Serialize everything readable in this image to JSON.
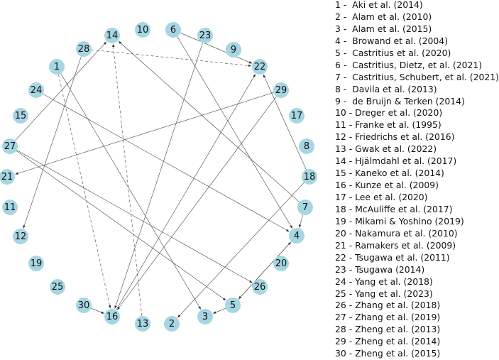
{
  "nodes": [
    {
      "id": "1",
      "label": "1"
    },
    {
      "id": "2",
      "label": "2"
    },
    {
      "id": "3",
      "label": "3"
    },
    {
      "id": "4",
      "label": "4"
    },
    {
      "id": "5",
      "label": "5"
    },
    {
      "id": "6",
      "label": "6"
    },
    {
      "id": "7",
      "label": "7"
    },
    {
      "id": "8",
      "label": "8"
    },
    {
      "id": "9",
      "label": "9"
    },
    {
      "id": "10",
      "label": "10"
    },
    {
      "id": "11",
      "label": "11"
    },
    {
      "id": "12",
      "label": "12"
    },
    {
      "id": "13",
      "label": "13"
    },
    {
      "id": "14",
      "label": "14"
    },
    {
      "id": "15",
      "label": "15"
    },
    {
      "id": "16",
      "label": "16"
    },
    {
      "id": "17",
      "label": "17"
    },
    {
      "id": "18",
      "label": "18"
    },
    {
      "id": "19",
      "label": "19"
    },
    {
      "id": "20",
      "label": "20"
    },
    {
      "id": "21",
      "label": "21"
    },
    {
      "id": "22",
      "label": "22"
    },
    {
      "id": "23",
      "label": "23"
    },
    {
      "id": "24",
      "label": "24"
    },
    {
      "id": "25",
      "label": "25"
    },
    {
      "id": "26",
      "label": "26"
    },
    {
      "id": "27",
      "label": "27"
    },
    {
      "id": "28",
      "label": "28"
    },
    {
      "id": "29",
      "label": "29"
    },
    {
      "id": "30",
      "label": "30"
    }
  ],
  "edges": [
    {
      "from": "28",
      "to": "22",
      "style": "dashed"
    },
    {
      "from": "6",
      "to": "22",
      "style": "solid"
    },
    {
      "from": "6",
      "to": "4",
      "style": "solid"
    },
    {
      "from": "23",
      "to": "16",
      "style": "solid"
    },
    {
      "from": "1",
      "to": "16",
      "style": "dashed"
    },
    {
      "from": "1",
      "to": "3",
      "style": "solid"
    },
    {
      "from": "13",
      "to": "14",
      "style": "dashed"
    },
    {
      "from": "28",
      "to": "12",
      "style": "solid"
    },
    {
      "from": "27",
      "to": "14",
      "style": "solid"
    },
    {
      "from": "27",
      "to": "26",
      "style": "solid"
    },
    {
      "from": "27",
      "to": "5",
      "style": "solid"
    },
    {
      "from": "24",
      "to": "4",
      "style": "solid"
    },
    {
      "from": "7",
      "to": "14",
      "style": "solid"
    },
    {
      "from": "7",
      "to": "4",
      "style": "solid"
    },
    {
      "from": "18",
      "to": "22",
      "style": "solid"
    },
    {
      "from": "18",
      "to": "2",
      "style": "solid"
    },
    {
      "from": "29",
      "to": "21",
      "style": "solid"
    },
    {
      "from": "29",
      "to": "16",
      "style": "solid"
    },
    {
      "from": "30",
      "to": "16",
      "style": "solid"
    },
    {
      "from": "16",
      "to": "22",
      "style": "solid"
    },
    {
      "from": "5",
      "to": "3",
      "style": "solid"
    },
    {
      "from": "5",
      "to": "4",
      "style": "solid"
    },
    {
      "from": "4",
      "to": "5",
      "style": "solid"
    }
  ],
  "legend": [
    "1 -  Aki et al. (2014)",
    "2 -  Alam et al. (2010)",
    "3 -  Alam et al. (2015)",
    "4 -  Browand et al. (2004)",
    "5 -  Castritius et al. (2020)",
    "6 -  Castritius, Dietz, et al. (2021)",
    "7 -  Castritius, Schubert, et al. (2021)",
    "8 -  Davila et al. (2013)",
    "9 -  de Bruijn & Terken (2014)",
    "10 - Dreger et al. (2020)",
    "11 - Franke et al. (1995)",
    "12 - Friedrichs et al. (2016)",
    "13 - Gwak et al. (2022)",
    "14 - Hjälmdahl et al. (2017)",
    "15 - Kaneko et al. (2014)",
    "16 - Kunze et al. (2009)",
    "17 - Lee et al. (2020)",
    "18 - McAuliffe et al. (2017)",
    "19 - Mikami & Yoshino (2019)",
    "20 - Nakamura et al. (2010)",
    "21 - Ramakers et al. (2009)",
    "22 - Tsugawa et al. (2011)",
    "23 - Tsugawa (2014)",
    "24 - Yang et al. (2018)",
    "25 - Yang et al. (2023)",
    "26 - Zhang et al. (2018)",
    "27 - Zhang et al. (2019)",
    "28 - Zheng et al. (2013)",
    "29 - Zheng et al. (2014)",
    "30 - Zheng et al. (2015)"
  ]
}
